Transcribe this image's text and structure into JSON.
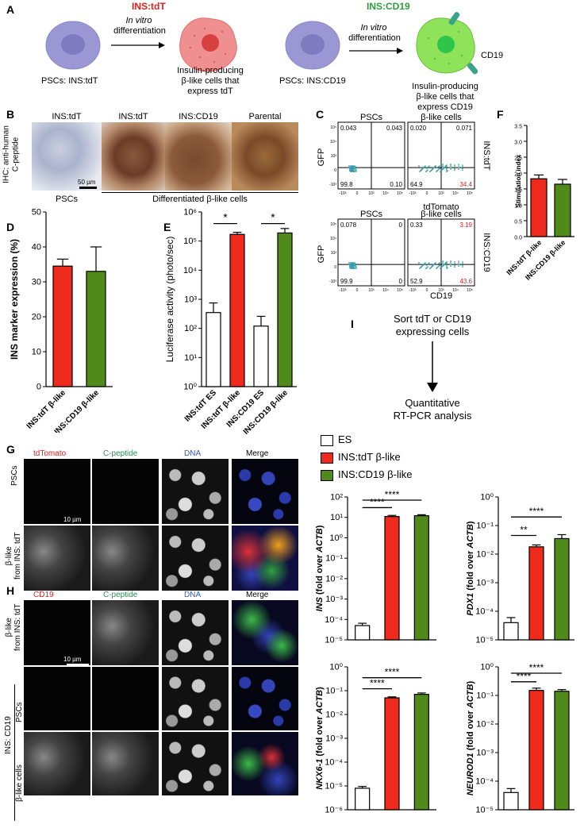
{
  "panel_letters": {
    "A": "A",
    "B": "B",
    "C": "C",
    "D": "D",
    "E": "E",
    "F": "F",
    "G": "G",
    "H": "H",
    "I": "I"
  },
  "colors": {
    "red": "#ee2a1c",
    "green": "#4f8a1b",
    "tdtomato_text": "#e02020",
    "cpep_text": "#2e8b57",
    "dna_text": "#3a55c8",
    "cd19_text": "#e02020",
    "cell_purple": "#9b97d4",
    "cell_pink": "#ef8f8f",
    "cell_green": "#8fe35a"
  },
  "panelA": {
    "left_title": "INS:tdT",
    "right_title": "INS:CD19",
    "arrow_text_line1": "In vitro",
    "arrow_text_line2": "differentiation",
    "psc_left": "PSCs:  INS:tdT",
    "psc_right": "PSCs:  INS:CD19",
    "beta_left": [
      "Insulin-producing",
      "β-like cells that",
      "express tdT"
    ],
    "beta_right": [
      "Insulin-producing",
      "β-like cells that",
      "express CD19"
    ],
    "cd19_tag": "CD19"
  },
  "panelB": {
    "ylabel_line1": "IHC: anti-human",
    "ylabel_line2": "C-peptide",
    "col_labels": [
      "INS:tdT",
      "INS:tdT",
      "INS:CD19",
      "Parental"
    ],
    "scale": "50 µm",
    "psc_caption": "PSCs",
    "diff_caption": "Differentiated β-like cells"
  },
  "panelC": {
    "top_col_labels": [
      "PSCs",
      "β-like cells"
    ],
    "bottom_col_labels": [
      "PSCs",
      "β-like cells"
    ],
    "ylabel": "GFP",
    "xlabel_top": "tdTomato",
    "xlabel_bottom": "CD19",
    "side_top": "INS:tdT",
    "side_bottom": "INS:CD19",
    "quads": [
      {
        "ul": "0.043",
        "ur": "0.043",
        "ll": "99.8",
        "lr": "0.10"
      },
      {
        "ul": "0.020",
        "ur": "0.071",
        "ll": "64.9",
        "lr": "34.4"
      },
      {
        "ul": "0.078",
        "ur": "0",
        "ll": "99.9",
        "lr": "0"
      },
      {
        "ul": "0.33",
        "ur": "3.19",
        "ll": "52.9",
        "lr": "43.6"
      }
    ],
    "yticks": [
      "10⁵",
      "10⁴",
      "10³",
      "0",
      "-10³"
    ],
    "xticks": [
      "-10³",
      "0",
      "10³",
      "10⁴",
      "10⁵"
    ]
  },
  "panelF": {
    "ylabel": "Stimulation index",
    "yticks": [
      "0.0",
      "0.5",
      "1.0",
      "1.5",
      "2.0",
      "2.5",
      "3.0",
      "3.5"
    ]
  },
  "panelD": {
    "ylabel": "INS marker expression (%)",
    "yticks": [
      "0",
      "10",
      "20",
      "30",
      "40",
      "50"
    ]
  },
  "panelE": {
    "ylabel": "Luciferase activity (photo/sec)",
    "yticks": [
      "10⁰",
      "10¹",
      "10²",
      "10³",
      "10⁴",
      "10⁵",
      "10⁶"
    ],
    "star": "*"
  },
  "panelI": {
    "step1_line1": "Sort tdT or CD19",
    "step1_line2": "expressing cells",
    "step2_line1": "Quantitative",
    "step2_line2": "RT-PCR analysis"
  },
  "legend": {
    "items": [
      "ES",
      "INS:tdT β-like",
      "INS:CD19 β-like"
    ]
  },
  "panelG": {
    "channels": [
      "tdTomato",
      "C-peptide",
      "DNA",
      "Merge"
    ],
    "rows": [
      "PSCs",
      "β-like\nfrom INS: tdT"
    ],
    "scale": "10 µm"
  },
  "panelH": {
    "channels": [
      "CD19",
      "C-peptide",
      "DNA",
      "Merge"
    ],
    "row1": "β-like\nfrom INS: tdT",
    "row2": "PSCs",
    "row3": "β-like cells",
    "group": "INS: CD19",
    "scale": "10 µm"
  },
  "qpcr_axes": {
    "ins_ylabel": "INS (fold over ACTB)",
    "pdx1_ylabel": "PDX1 (fold over ACTB)",
    "nkx_ylabel": "NKX6-1 (fold over ACTB)",
    "neurod_ylabel": "NEUROD1 (fold over ACTB)",
    "ins_yticks": [
      "10²",
      "10¹",
      "10⁰",
      "10⁻¹",
      "10⁻²",
      "10⁻³",
      "10⁻⁴",
      "10⁻⁵"
    ],
    "pdx1_yticks": [
      "10⁰",
      "10⁻¹",
      "10⁻²",
      "10⁻³",
      "10⁻⁴",
      "10⁻⁵"
    ],
    "nkx_yticks": [
      "10⁰",
      "10⁻¹",
      "10⁻²",
      "10⁻³",
      "10⁻⁴",
      "10⁻⁵",
      "10⁻⁶"
    ],
    "neurod_yticks": [
      "10⁰",
      "10⁻¹",
      "10⁻²",
      "10⁻³",
      "10⁻⁴",
      "10⁻⁵"
    ],
    "sig_ins": [
      "****",
      "****"
    ],
    "sig_pdx1": [
      "**",
      "****"
    ],
    "sig_nkx": [
      "****",
      "****"
    ],
    "sig_neurod": [
      "****",
      "****"
    ]
  },
  "chart_data": [
    {
      "id": "F",
      "type": "bar",
      "categories": [
        "INS:tdT β-like",
        "INS:CD19 β-like"
      ],
      "values": [
        1.82,
        1.65
      ],
      "errors": [
        0.12,
        0.15
      ],
      "ylabel": "Stimulation index",
      "ylim": [
        0,
        3.5
      ],
      "colors": [
        "#ee2a1c",
        "#4f8a1b"
      ]
    },
    {
      "id": "D",
      "type": "bar",
      "categories": [
        "INS:tdT β-like",
        "INS:CD19 β-like"
      ],
      "values": [
        34.5,
        33
      ],
      "errors": [
        2,
        7
      ],
      "ylabel": "INS marker expression (%)",
      "ylim": [
        0,
        50
      ],
      "colors": [
        "#ee2a1c",
        "#4f8a1b"
      ]
    },
    {
      "id": "E",
      "type": "bar",
      "log": true,
      "categories": [
        "INS:tdT ES",
        "INS:tdT β-like",
        "INS:CD19 ES",
        "INS:CD19 β-like"
      ],
      "values": [
        350,
        170000,
        120,
        190000
      ],
      "errors_upper": [
        750,
        200000,
        260,
        270000
      ],
      "ylabel": "Luciferase activity (photo/sec)",
      "ylim": [
        1,
        1000000
      ],
      "colors": [
        "#ffffff",
        "#ee2a1c",
        "#ffffff",
        "#4f8a1b"
      ]
    },
    {
      "id": "INS",
      "type": "bar",
      "log": true,
      "categories": [
        "ES",
        "INS:tdT β-like",
        "INS:CD19 β-like"
      ],
      "values": [
        5e-05,
        11,
        12
      ],
      "errors_upper": [
        6.5e-05,
        12.5,
        13.5
      ],
      "ylabel": "INS (fold over ACTB)",
      "ylim": [
        1e-05,
        100
      ],
      "colors": [
        "#ffffff",
        "#ee2a1c",
        "#4f8a1b"
      ]
    },
    {
      "id": "PDX1",
      "type": "bar",
      "log": true,
      "categories": [
        "ES",
        "INS:tdT β-like",
        "INS:CD19 β-like"
      ],
      "values": [
        4e-05,
        0.018,
        0.035
      ],
      "errors_upper": [
        6e-05,
        0.021,
        0.048
      ],
      "ylabel": "PDX1 (fold over ACTB)",
      "ylim": [
        1e-05,
        1
      ],
      "colors": [
        "#ffffff",
        "#ee2a1c",
        "#4f8a1b"
      ]
    },
    {
      "id": "NKX6-1",
      "type": "bar",
      "log": true,
      "categories": [
        "ES",
        "INS:tdT β-like",
        "INS:CD19 β-like"
      ],
      "values": [
        8e-06,
        0.05,
        0.07
      ],
      "errors_upper": [
        9.5e-06,
        0.055,
        0.08
      ],
      "ylabel": "NKX6-1 (fold over ACTB)",
      "ylim": [
        1e-06,
        1
      ],
      "colors": [
        "#ffffff",
        "#ee2a1c",
        "#4f8a1b"
      ]
    },
    {
      "id": "NEUROD1",
      "type": "bar",
      "log": true,
      "categories": [
        "ES",
        "INS:tdT β-like",
        "INS:CD19 β-like"
      ],
      "values": [
        4e-05,
        0.15,
        0.14
      ],
      "errors_upper": [
        5.5e-05,
        0.18,
        0.16
      ],
      "ylabel": "NEUROD1 (fold over ACTB)",
      "ylim": [
        1e-05,
        1
      ],
      "colors": [
        "#ffffff",
        "#ee2a1c",
        "#4f8a1b"
      ]
    }
  ]
}
